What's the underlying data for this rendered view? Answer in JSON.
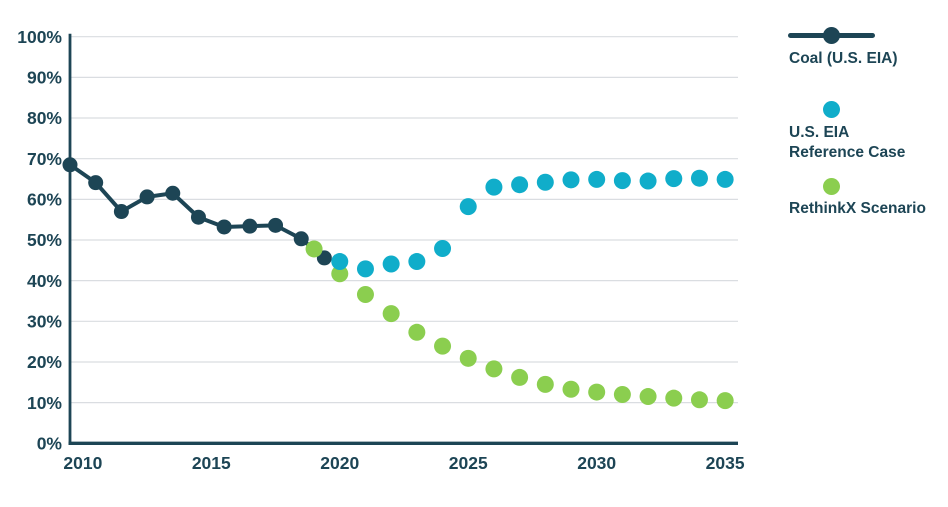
{
  "page": {
    "background": "#ffffff"
  },
  "chart_data": {
    "type": "line",
    "title": "",
    "xlabel": "",
    "ylabel": "",
    "xlim": [
      2009.5,
      2035.5
    ],
    "ylim": [
      0,
      100
    ],
    "x_ticks": [
      2010,
      2015,
      2020,
      2025,
      2030,
      2035
    ],
    "y_ticks": [
      0,
      10,
      20,
      30,
      40,
      50,
      60,
      70,
      80,
      90,
      100
    ],
    "y_tick_suffix": "%",
    "grid": "horizontal-gridlines",
    "legend_position": "right",
    "draw_order": [
      "coal",
      "rethinkx",
      "eia"
    ],
    "style": {
      "axis_color": "#1d4555",
      "text_color": "#1d4555",
      "grid_color": "#dadde1",
      "background": "#ffffff"
    },
    "series": [
      {
        "id": "coal",
        "name": "Coal (U.S. EIA)",
        "type": "line-with-markers",
        "color": "#1d4555",
        "x": [
          2009.5,
          2010.5,
          2011.5,
          2012.5,
          2013.5,
          2014.5,
          2015.5,
          2016.5,
          2017.5,
          2018.5,
          2019.4
        ],
        "values": [
          68.5,
          64.1,
          57.0,
          60.6,
          61.5,
          55.6,
          53.2,
          53.4,
          53.6,
          50.3,
          45.6
        ]
      },
      {
        "id": "eia",
        "name": "U.S. EIA Reference Case",
        "type": "scatter",
        "color": "#10adca",
        "x": [
          2020,
          2021,
          2022,
          2023,
          2024,
          2025,
          2026,
          2027,
          2028,
          2029,
          2030,
          2031,
          2032,
          2033,
          2034,
          2035
        ],
        "values": [
          44.7,
          42.9,
          44.1,
          44.7,
          47.9,
          58.2,
          63.0,
          63.6,
          64.2,
          64.8,
          64.9,
          64.6,
          64.5,
          65.1,
          65.2,
          64.9
        ]
      },
      {
        "id": "rethinkx",
        "name": "RethinkX Scenario",
        "type": "scatter",
        "color": "#8bce4f",
        "x": [
          2019,
          2020,
          2021,
          2022,
          2023,
          2024,
          2025,
          2026,
          2027,
          2028,
          2029,
          2030,
          2031,
          2032,
          2033,
          2034,
          2035
        ],
        "values": [
          47.8,
          41.7,
          36.6,
          31.9,
          27.3,
          23.9,
          20.9,
          18.3,
          16.2,
          14.5,
          13.3,
          12.6,
          12.0,
          11.5,
          11.1,
          10.7,
          10.5
        ]
      }
    ]
  },
  "legend": {
    "items": [
      {
        "marker": "line-with-dot",
        "lines": [
          "Coal (U.S. EIA)"
        ]
      },
      {
        "marker": "dot",
        "lines": [
          "U.S. EIA",
          "Reference Case"
        ]
      },
      {
        "marker": "dot",
        "lines": [
          "RethinkX Scenario"
        ]
      }
    ]
  }
}
